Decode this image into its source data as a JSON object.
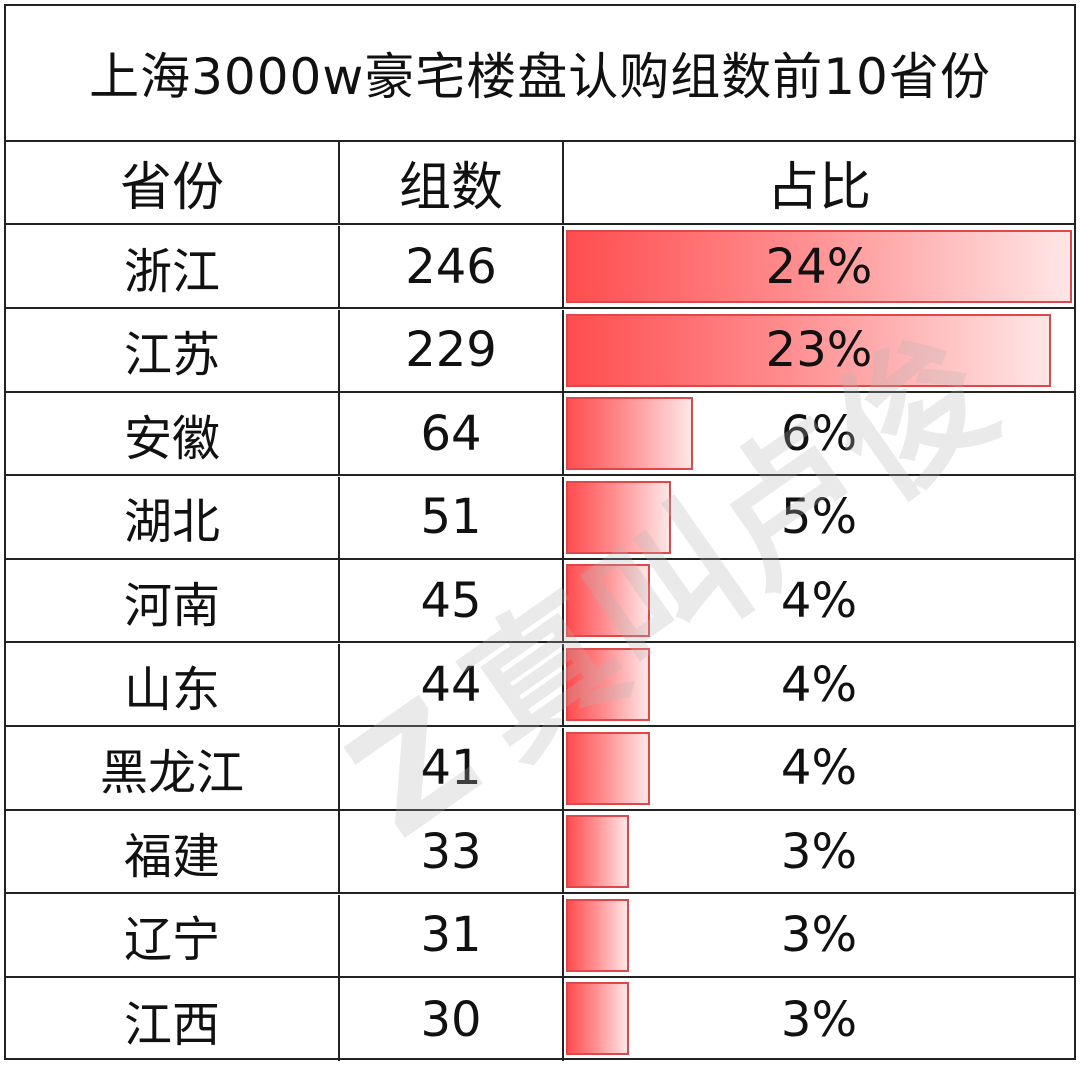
{
  "chart_data": {
    "type": "table",
    "title": "上海3000w豪宅楼盘认购组数前10省份",
    "columns": [
      "省份",
      "组数",
      "占比"
    ],
    "rows": [
      {
        "province": "浙江",
        "count": "246",
        "share": "24%",
        "share_value": 24
      },
      {
        "province": "江苏",
        "count": "229",
        "share": "23%",
        "share_value": 23
      },
      {
        "province": "安徽",
        "count": "64",
        "share": "6%",
        "share_value": 6
      },
      {
        "province": "湖北",
        "count": "51",
        "share": "5%",
        "share_value": 5
      },
      {
        "province": "河南",
        "count": "45",
        "share": "4%",
        "share_value": 4
      },
      {
        "province": "山东",
        "count": "44",
        "share": "4%",
        "share_value": 4
      },
      {
        "province": "黑龙江",
        "count": "41",
        "share": "4%",
        "share_value": 4
      },
      {
        "province": "福建",
        "count": "33",
        "share": "3%",
        "share_value": 3
      },
      {
        "province": "辽宁",
        "count": "31",
        "share": "3%",
        "share_value": 3
      },
      {
        "province": "江西",
        "count": "30",
        "share": "3%",
        "share_value": 3
      }
    ],
    "bar_max_share": 24,
    "bar_color": "#ff4d4f"
  },
  "watermark": {
    "logo": "Z",
    "text": "真叫卢俊"
  }
}
